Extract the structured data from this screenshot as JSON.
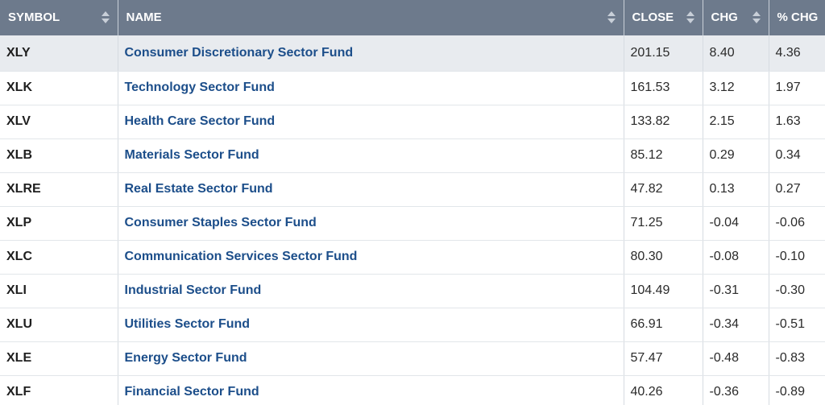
{
  "headers": {
    "symbol": "SYMBOL",
    "name": "NAME",
    "close": "CLOSE",
    "chg": "CHG",
    "pct_chg": "% CHG"
  },
  "rows": [
    {
      "symbol": "XLY",
      "name": "Consumer Discretionary Sector Fund",
      "close": "201.15",
      "chg": "8.40",
      "pct_chg": "4.36"
    },
    {
      "symbol": "XLK",
      "name": "Technology Sector Fund",
      "close": "161.53",
      "chg": "3.12",
      "pct_chg": "1.97"
    },
    {
      "symbol": "XLV",
      "name": "Health Care Sector Fund",
      "close": "133.82",
      "chg": "2.15",
      "pct_chg": "1.63"
    },
    {
      "symbol": "XLB",
      "name": "Materials Sector Fund",
      "close": "85.12",
      "chg": "0.29",
      "pct_chg": "0.34"
    },
    {
      "symbol": "XLRE",
      "name": "Real Estate Sector Fund",
      "close": "47.82",
      "chg": "0.13",
      "pct_chg": "0.27"
    },
    {
      "symbol": "XLP",
      "name": "Consumer Staples Sector Fund",
      "close": "71.25",
      "chg": "-0.04",
      "pct_chg": "-0.06"
    },
    {
      "symbol": "XLC",
      "name": "Communication Services Sector Fund",
      "close": "80.30",
      "chg": "-0.08",
      "pct_chg": "-0.10"
    },
    {
      "symbol": "XLI",
      "name": "Industrial Sector Fund",
      "close": "104.49",
      "chg": "-0.31",
      "pct_chg": "-0.30"
    },
    {
      "symbol": "XLU",
      "name": "Utilities Sector Fund",
      "close": "66.91",
      "chg": "-0.34",
      "pct_chg": "-0.51"
    },
    {
      "symbol": "XLE",
      "name": "Energy Sector Fund",
      "close": "57.47",
      "chg": "-0.48",
      "pct_chg": "-0.83"
    },
    {
      "symbol": "XLF",
      "name": "Financial Sector Fund",
      "close": "40.26",
      "chg": "-0.36",
      "pct_chg": "-0.89"
    }
  ],
  "colors": {
    "header_bg": "#6d7a8c",
    "link": "#1c4e8a",
    "highlight_row": "#e8ebef"
  },
  "icons": {
    "sort": "sort-both-icon",
    "sort_active": "sort-descending-icon"
  }
}
